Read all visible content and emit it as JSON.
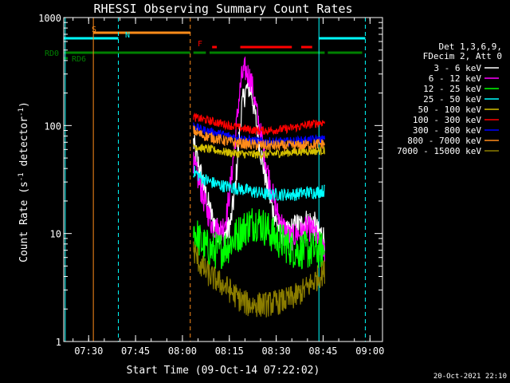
{
  "chart_data": {
    "type": "line",
    "title": "RHESSI Observing Summary Count Rates",
    "xlabel": "Start Time (09-Oct-14 07:22:02)",
    "ylabel_main": "Count Rate (s",
    "ylabel_sup1": "-1",
    "ylabel_mid": " detector",
    "ylabel_sup2": "-1",
    "ylabel_end": ")",
    "yscale": "log",
    "xlim": [
      "07:22:02",
      "09:04:00"
    ],
    "ylim": [
      1,
      1000
    ],
    "x_ticks": [
      "07:30",
      "07:45",
      "08:00",
      "08:15",
      "08:30",
      "08:45",
      "09:00"
    ],
    "y_ticks": [
      {
        "value": 1,
        "label": "1"
      },
      {
        "value": 10,
        "label": "10"
      },
      {
        "value": 100,
        "label": "100"
      },
      {
        "value": 1000,
        "label": "1000"
      }
    ],
    "legend": {
      "placement": "right",
      "header": [
        "Det 1,3,6,9,",
        "FDecim 2, Att 0"
      ],
      "entries": [
        {
          "label": "3 - 6 keV",
          "color": "#ffffff"
        },
        {
          "label": "6 - 12 keV",
          "color": "#ff00ff"
        },
        {
          "label": "12 - 25 keV",
          "color": "#00ff00"
        },
        {
          "label": "25 - 50 keV",
          "color": "#00ffff"
        },
        {
          "label": "50 - 100 keV",
          "color": "#d4c000"
        },
        {
          "label": "100 - 300 keV",
          "color": "#ff0000"
        },
        {
          "label": "300 - 800 keV",
          "color": "#0000ff"
        },
        {
          "label": "800 - 7000 keV",
          "color": "#ff8c1a"
        },
        {
          "label": "7000 - 15000 keV",
          "color": "#8b7d00"
        }
      ]
    },
    "flag_labels": {
      "saa": "S",
      "night": "N",
      "flare": "F",
      "rd0": "RD0",
      "rd6": "RD6"
    },
    "flag_intervals": {
      "saa": [
        [
          "07:31:30",
          "08:02:30"
        ]
      ],
      "night": [
        [
          "07:22:02",
          "07:39:30"
        ],
        [
          "08:43:40",
          "08:58:30"
        ]
      ],
      "flare": [
        [
          "08:09:30",
          "08:11:00"
        ],
        [
          "08:18:30",
          "08:35:00"
        ],
        [
          "08:38:00",
          "08:41:30"
        ]
      ],
      "rd0": [
        [
          "07:22:02",
          "08:02:30"
        ],
        [
          "08:03:30",
          "08:07:30"
        ],
        [
          "08:08:40",
          "08:45:30"
        ],
        [
          "08:46:30",
          "08:57:30"
        ]
      ],
      "rd6": [
        [
          "07:22:02",
          "07:23:20"
        ]
      ]
    },
    "vlines": [
      {
        "time": "07:31:30",
        "color": "#ff8c1a",
        "style": "solid"
      },
      {
        "time": "07:39:30",
        "color": "#00ffff",
        "style": "dashed"
      },
      {
        "time": "08:02:30",
        "color": "#ff8c1a",
        "style": "dashed"
      },
      {
        "time": "08:43:40",
        "color": "#00ffff",
        "style": "solid"
      },
      {
        "time": "08:58:30",
        "color": "#00ffff",
        "style": "dashed"
      },
      {
        "time": "07:22:30",
        "color": "#00ffff",
        "style": "solid"
      }
    ],
    "series": [
      {
        "name": "3 - 6 keV",
        "color": "#ffffff",
        "noise": 0.12,
        "x": [
          "08:03:30",
          "08:05:00",
          "08:06:30",
          "08:08:00",
          "08:09:30",
          "08:11:00",
          "08:12:30",
          "08:14:00",
          "08:15:30",
          "08:17:00",
          "08:18:00",
          "08:19:00",
          "08:20:00",
          "08:21:00",
          "08:22:00",
          "08:23:00",
          "08:24:30",
          "08:26:00",
          "08:27:30",
          "08:29:00",
          "08:30:30",
          "08:32:00",
          "08:33:30",
          "08:35:00",
          "08:36:30",
          "08:38:00",
          "08:39:30",
          "08:41:00",
          "08:42:30",
          "08:43:30",
          "08:44:30",
          "08:45:30"
        ],
        "y": [
          70,
          45,
          30,
          20,
          14,
          11,
          10,
          10,
          13,
          28,
          70,
          150,
          200,
          230,
          210,
          140,
          70,
          40,
          25,
          16,
          12,
          10,
          10,
          11,
          12,
          12,
          13,
          13,
          12,
          10,
          10,
          9
        ]
      },
      {
        "name": "6 - 12 keV",
        "color": "#ff00ff",
        "noise": 0.12,
        "x": [
          "08:03:30",
          "08:05:00",
          "08:06:30",
          "08:08:00",
          "08:09:30",
          "08:11:00",
          "08:12:30",
          "08:14:00",
          "08:15:30",
          "08:17:00",
          "08:18:00",
          "08:19:00",
          "08:20:00",
          "08:21:00",
          "08:22:00",
          "08:23:00",
          "08:24:30",
          "08:26:00",
          "08:27:30",
          "08:29:00",
          "08:30:30",
          "08:32:00",
          "08:33:30",
          "08:35:00",
          "08:36:30",
          "08:38:00",
          "08:39:30",
          "08:41:00",
          "08:42:30",
          "08:43:30",
          "08:44:30",
          "08:45:30"
        ],
        "y": [
          45,
          32,
          22,
          16,
          12,
          11,
          11,
          14,
          30,
          80,
          170,
          280,
          330,
          300,
          260,
          180,
          100,
          60,
          35,
          22,
          15,
          12,
          10,
          9,
          10,
          10,
          11,
          11,
          10,
          8,
          7,
          7
        ]
      },
      {
        "name": "12 - 25 keV",
        "color": "#00ff00",
        "noise": 0.18,
        "x": [
          "08:03:30",
          "08:06:00",
          "08:09:00",
          "08:12:00",
          "08:15:00",
          "08:18:00",
          "08:21:00",
          "08:24:00",
          "08:27:00",
          "08:30:00",
          "08:33:00",
          "08:36:00",
          "08:39:00",
          "08:42:00",
          "08:45:30"
        ],
        "y": [
          11,
          8,
          7,
          7,
          8,
          10,
          12,
          13,
          11,
          9,
          8,
          7,
          7,
          7,
          7
        ]
      },
      {
        "name": "25 - 50 keV",
        "color": "#00ffff",
        "noise": 0.06,
        "x": [
          "08:03:30",
          "08:06:00",
          "08:09:00",
          "08:12:00",
          "08:15:00",
          "08:18:00",
          "08:21:00",
          "08:24:00",
          "08:27:00",
          "08:30:00",
          "08:33:00",
          "08:36:00",
          "08:39:00",
          "08:42:00",
          "08:45:30"
        ],
        "y": [
          38,
          33,
          30,
          28,
          27,
          26,
          25,
          24,
          23,
          23,
          23,
          23,
          24,
          24,
          25
        ]
      },
      {
        "name": "50 - 100 keV",
        "color": "#d4c000",
        "noise": 0.04,
        "x": [
          "08:03:30",
          "08:06:00",
          "08:09:00",
          "08:12:00",
          "08:15:00",
          "08:18:00",
          "08:21:00",
          "08:24:00",
          "08:27:00",
          "08:30:00",
          "08:33:00",
          "08:36:00",
          "08:39:00",
          "08:42:00",
          "08:45:30"
        ],
        "y": [
          65,
          62,
          60,
          58,
          56,
          55,
          54,
          54,
          54,
          55,
          56,
          57,
          58,
          58,
          59
        ]
      },
      {
        "name": "100 - 300 keV",
        "color": "#ff0000",
        "noise": 0.04,
        "x": [
          "08:03:30",
          "08:06:00",
          "08:09:00",
          "08:12:00",
          "08:15:00",
          "08:18:00",
          "08:21:00",
          "08:24:00",
          "08:27:00",
          "08:30:00",
          "08:33:00",
          "08:36:00",
          "08:39:00",
          "08:42:00",
          "08:45:30"
        ],
        "y": [
          120,
          115,
          110,
          105,
          100,
          96,
          92,
          90,
          90,
          91,
          93,
          96,
          100,
          104,
          108
        ]
      },
      {
        "name": "300 - 800 keV",
        "color": "#0000ff",
        "noise": 0.04,
        "x": [
          "08:03:30",
          "08:06:00",
          "08:09:00",
          "08:12:00",
          "08:15:00",
          "08:18:00",
          "08:21:00",
          "08:24:00",
          "08:27:00",
          "08:30:00",
          "08:33:00",
          "08:36:00",
          "08:39:00",
          "08:42:00",
          "08:45:30"
        ],
        "y": [
          100,
          92,
          88,
          84,
          80,
          77,
          74,
          72,
          71,
          71,
          71,
          72,
          73,
          74,
          75
        ]
      },
      {
        "name": "800 - 7000 keV",
        "color": "#ff8c1a",
        "noise": 0.05,
        "x": [
          "08:03:30",
          "08:06:00",
          "08:09:00",
          "08:12:00",
          "08:15:00",
          "08:18:00",
          "08:21:00",
          "08:24:00",
          "08:27:00",
          "08:30:00",
          "08:33:00",
          "08:36:00",
          "08:39:00",
          "08:42:00",
          "08:45:30"
        ],
        "y": [
          90,
          82,
          78,
          74,
          71,
          69,
          67,
          66,
          65,
          65,
          65,
          65,
          66,
          67,
          68
        ]
      },
      {
        "name": "7000 - 15000 keV",
        "color": "#8b7d00",
        "noise": 0.12,
        "x": [
          "08:03:30",
          "08:06:00",
          "08:09:00",
          "08:12:00",
          "08:15:00",
          "08:18:00",
          "08:21:00",
          "08:24:00",
          "08:27:00",
          "08:30:00",
          "08:33:00",
          "08:36:00",
          "08:39:00",
          "08:42:00",
          "08:45:30"
        ],
        "y": [
          7,
          5,
          4,
          3.5,
          3,
          2.5,
          2.2,
          2.2,
          2.2,
          2.3,
          2.4,
          2.6,
          3,
          3.6,
          4.5
        ]
      }
    ]
  },
  "footer": {
    "timestamp": "20-Oct-2021 22:10"
  }
}
